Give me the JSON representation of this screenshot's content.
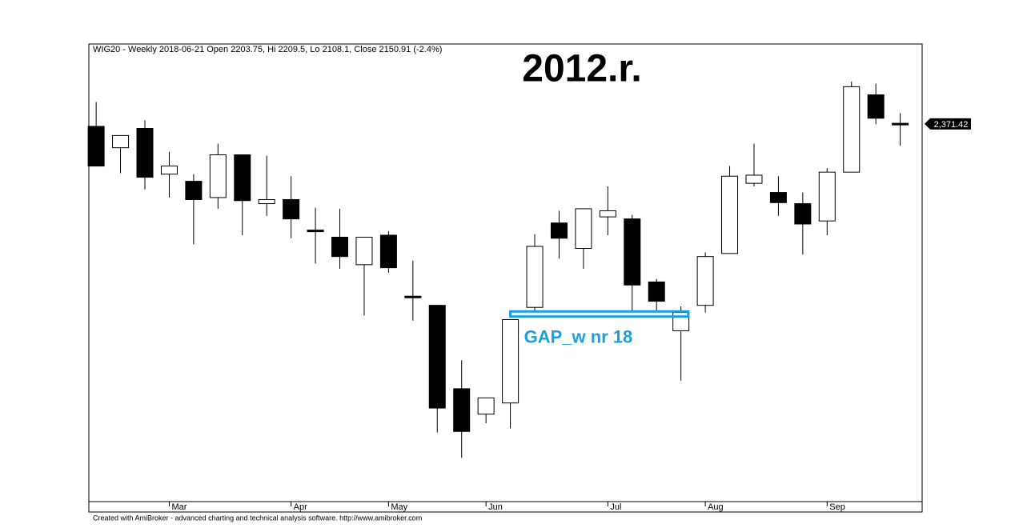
{
  "chart_data": {
    "type": "candlestick",
    "title": "WIG20 - Weekly 2018-06-21 Open 2203.75, Hi 2209.5, Lo 2108.1, Close 2150.91 (-2.4%)",
    "annotation": "2012.r.",
    "footer": "Created with AmiBroker - advanced charting and technical analysis software. http://www.amibroker.com",
    "open": [
      2369,
      2348,
      2367,
      2322,
      2315,
      2299,
      2341,
      2293,
      2297,
      2267,
      2260,
      2233,
      2262,
      2202,
      2193,
      2111,
      2086,
      2097,
      2191,
      2274,
      2249,
      2280,
      2278,
      2216,
      2168,
      2193,
      2244,
      2313,
      2304,
      2293,
      2276,
      2324,
      2400,
      2372
    ],
    "high": [
      2393,
      2360,
      2375,
      2344,
      2322,
      2352,
      2341,
      2340,
      2320,
      2289,
      2288,
      2260,
      2266,
      2237,
      2193,
      2139,
      2102,
      2179,
      2263,
      2286,
      2288,
      2310,
      2282,
      2219,
      2192,
      2245,
      2330,
      2352,
      2320,
      2304,
      2328,
      2413,
      2411,
      2382
    ],
    "low": [
      2330,
      2323,
      2307,
      2299,
      2253,
      2288,
      2262,
      2281,
      2259,
      2234,
      2229,
      2183,
      2225,
      2178,
      2068,
      2043,
      2077,
      2072,
      2187,
      2239,
      2229,
      2262,
      2187,
      2187,
      2119,
      2186,
      2244,
      2310,
      2281,
      2243,
      2262,
      2324,
      2371,
      2350
    ],
    "close": [
      2330,
      2360,
      2319,
      2330,
      2297,
      2341,
      2296,
      2297,
      2278,
      2266,
      2241,
      2260,
      2230,
      2201,
      2092,
      2069,
      2102,
      2179,
      2251,
      2259,
      2288,
      2286,
      2213,
      2197,
      2186,
      2241,
      2320,
      2321,
      2294,
      2273,
      2324,
      2408,
      2377,
      2371.42
    ],
    "up_color": "#ffffff",
    "down_color": "#000000",
    "xlim": [
      -0.3,
      33.9
    ],
    "xticks": [
      {
        "value": 3,
        "label": "Mar"
      },
      {
        "value": 8,
        "label": "Apr"
      },
      {
        "value": 12,
        "label": "May"
      },
      {
        "value": 16,
        "label": "Jun"
      },
      {
        "value": 21,
        "label": "Jul"
      },
      {
        "value": 25,
        "label": "Aug"
      },
      {
        "value": 30,
        "label": "Sep"
      }
    ],
    "ylim": [
      2000,
      2450
    ],
    "last_price": {
      "value": 2371.42,
      "label": "2,371.42"
    },
    "gap": {
      "label": "GAP_w nr 18",
      "range": [
        2182,
        2187
      ],
      "x_range": [
        17,
        24.3
      ],
      "color": "#1aa0e0"
    }
  }
}
